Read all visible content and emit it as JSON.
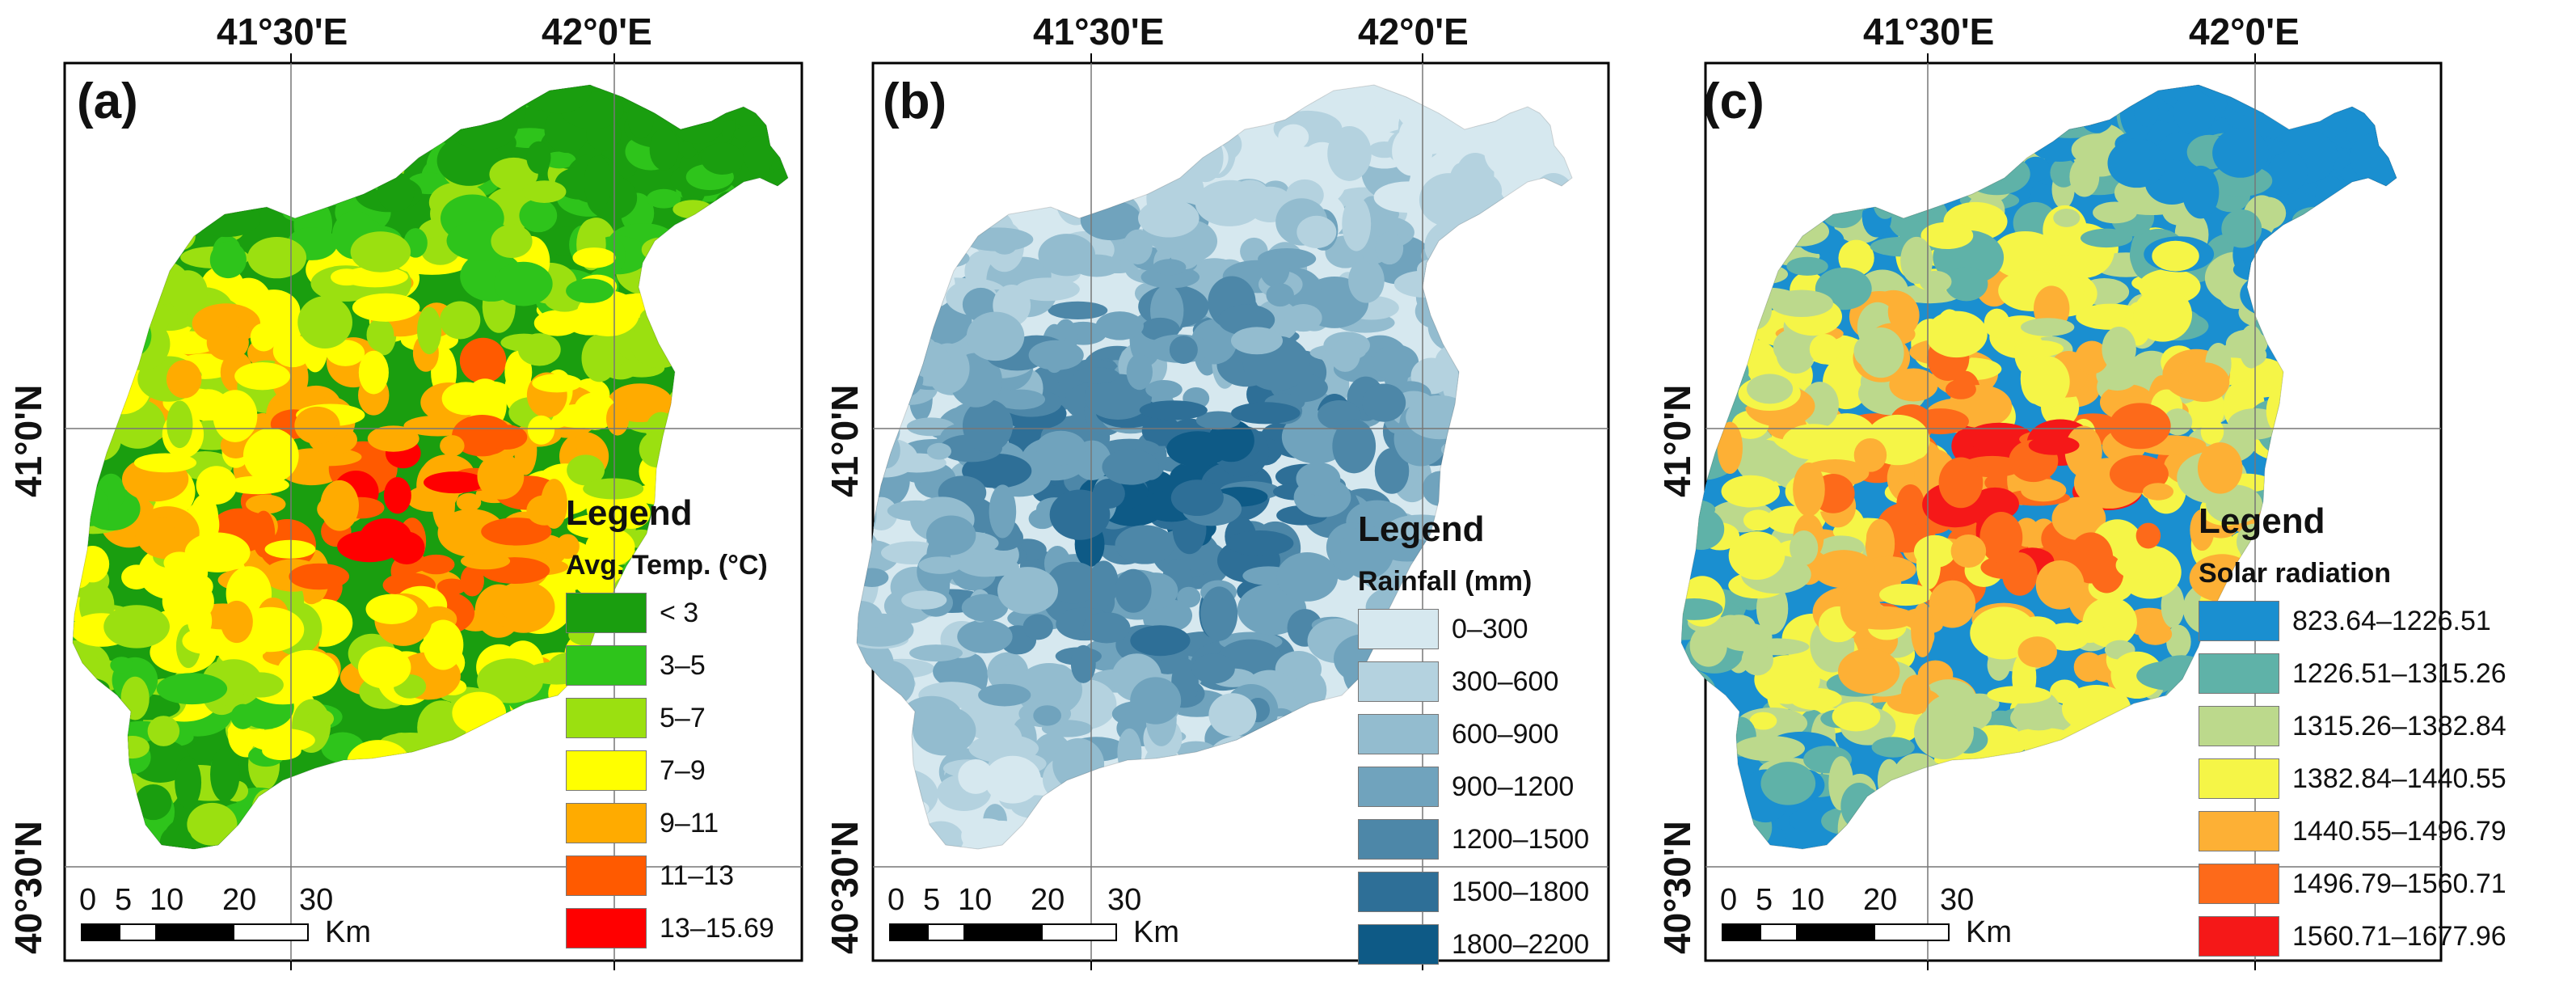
{
  "axes": {
    "lon_labels": [
      "41°30'E",
      "42°0'E"
    ],
    "lat_labels": [
      "41°0'N",
      "40°30'N"
    ]
  },
  "scale_bar": {
    "ticks": [
      "0",
      "5",
      "10",
      "20",
      "30"
    ],
    "unit": "Km"
  },
  "panels": [
    {
      "tag": "(a)",
      "legend_title": "Legend",
      "variable": "Avg. Temp. (°C)",
      "classes": [
        {
          "label": "< 3",
          "color": "#1a9e0f"
        },
        {
          "label": "3–5",
          "color": "#2ec41b"
        },
        {
          "label": "5–7",
          "color": "#9be010"
        },
        {
          "label": "7–9",
          "color": "#ffff00"
        },
        {
          "label": "9–11",
          "color": "#ffab00"
        },
        {
          "label": "11–13",
          "color": "#ff5a00"
        },
        {
          "label": "13–15.69",
          "color": "#ff0000"
        }
      ]
    },
    {
      "tag": "(b)",
      "legend_title": "Legend",
      "variable": "Rainfall (mm)",
      "classes": [
        {
          "label": "0–300",
          "color": "#d6e8ef"
        },
        {
          "label": "300–600",
          "color": "#b4d2df"
        },
        {
          "label": "600–900",
          "color": "#93bccf"
        },
        {
          "label": "900–1200",
          "color": "#70a3bd"
        },
        {
          "label": "1200–1500",
          "color": "#4d87a8"
        },
        {
          "label": "1500–1800",
          "color": "#2e6f97"
        },
        {
          "label": "1800–2200",
          "color": "#0e5a86"
        }
      ]
    },
    {
      "tag": "(c)",
      "legend_title": "Legend",
      "variable": "Solar radiation",
      "classes": [
        {
          "label": "823.64–1226.51",
          "color": "#1a8fd0"
        },
        {
          "label": "1226.51–1315.26",
          "color": "#5fb2a8"
        },
        {
          "label": "1315.26–1382.84",
          "color": "#bcd98c"
        },
        {
          "label": "1382.84–1440.55",
          "color": "#f5f547"
        },
        {
          "label": "1440.55–1496.79",
          "color": "#fdb035"
        },
        {
          "label": "1496.79–1560.71",
          "color": "#fd6a1a"
        },
        {
          "label": "1560.71–1677.96",
          "color": "#f51818"
        }
      ]
    }
  ]
}
